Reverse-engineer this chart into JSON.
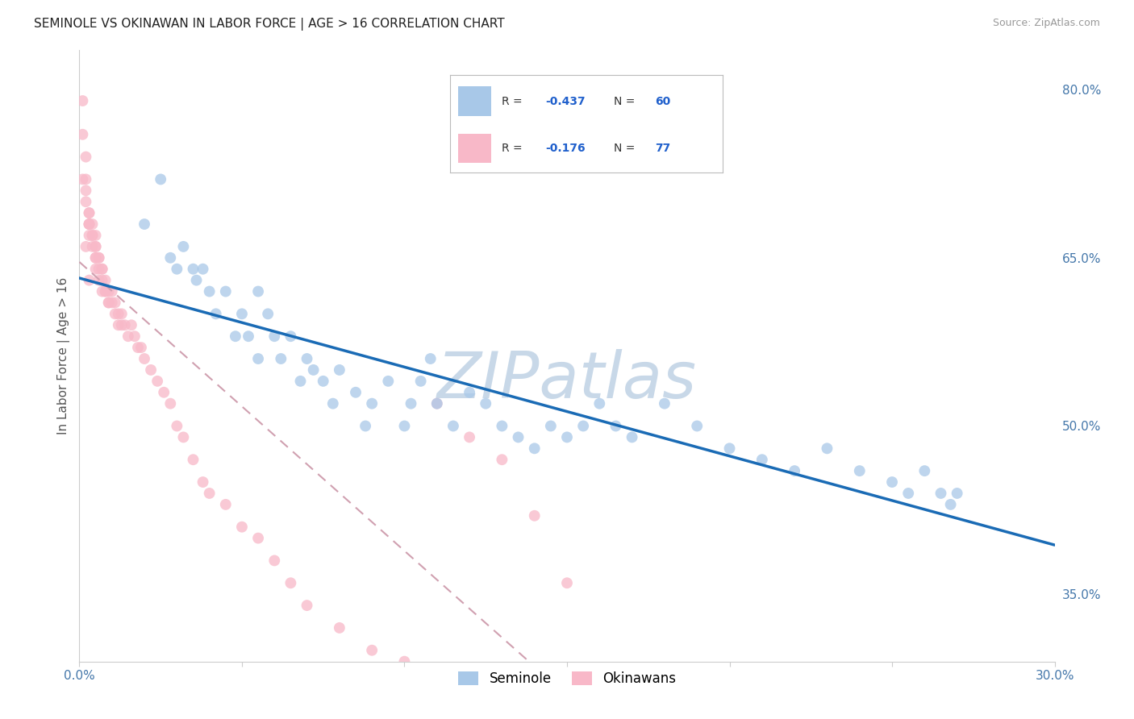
{
  "title": "SEMINOLE VS OKINAWAN IN LABOR FORCE | AGE > 16 CORRELATION CHART",
  "source": "Source: ZipAtlas.com",
  "ylabel": "In Labor Force | Age > 16",
  "xlim": [
    0.0,
    0.3
  ],
  "ylim": [
    0.29,
    0.835
  ],
  "xticks": [
    0.0,
    0.05,
    0.1,
    0.15,
    0.2,
    0.25,
    0.3
  ],
  "xtick_labels": [
    "0.0%",
    "",
    "",
    "",
    "",
    "",
    "30.0%"
  ],
  "right_yticks": [
    0.8,
    0.65,
    0.5,
    0.35
  ],
  "ytick_labels_right": [
    "80.0%",
    "65.0%",
    "50.0%",
    "35.0%"
  ],
  "seminole_color": "#a8c8e8",
  "okinawan_color": "#f8b8c8",
  "seminole_line_color": "#1a6bb5",
  "okinawan_line_color": "#e88898",
  "background_color": "#ffffff",
  "grid_color": "#dddddd",
  "watermark": "ZIPatlas",
  "watermark_color": "#c8d8e8",
  "seminole_x": [
    0.02,
    0.025,
    0.028,
    0.03,
    0.032,
    0.035,
    0.036,
    0.038,
    0.04,
    0.042,
    0.045,
    0.048,
    0.05,
    0.052,
    0.055,
    0.055,
    0.058,
    0.06,
    0.062,
    0.065,
    0.068,
    0.07,
    0.072,
    0.075,
    0.078,
    0.08,
    0.085,
    0.088,
    0.09,
    0.095,
    0.1,
    0.102,
    0.105,
    0.108,
    0.11,
    0.115,
    0.12,
    0.125,
    0.13,
    0.135,
    0.14,
    0.145,
    0.15,
    0.155,
    0.16,
    0.165,
    0.17,
    0.18,
    0.19,
    0.2,
    0.21,
    0.22,
    0.23,
    0.24,
    0.25,
    0.255,
    0.26,
    0.265,
    0.268,
    0.27
  ],
  "seminole_y": [
    0.68,
    0.72,
    0.65,
    0.64,
    0.66,
    0.64,
    0.63,
    0.64,
    0.62,
    0.6,
    0.62,
    0.58,
    0.6,
    0.58,
    0.56,
    0.62,
    0.6,
    0.58,
    0.56,
    0.58,
    0.54,
    0.56,
    0.55,
    0.54,
    0.52,
    0.55,
    0.53,
    0.5,
    0.52,
    0.54,
    0.5,
    0.52,
    0.54,
    0.56,
    0.52,
    0.5,
    0.53,
    0.52,
    0.5,
    0.49,
    0.48,
    0.5,
    0.49,
    0.5,
    0.52,
    0.5,
    0.49,
    0.52,
    0.5,
    0.48,
    0.47,
    0.46,
    0.48,
    0.46,
    0.45,
    0.44,
    0.46,
    0.44,
    0.43,
    0.44
  ],
  "okinawan_x": [
    0.001,
    0.001,
    0.001,
    0.002,
    0.002,
    0.002,
    0.002,
    0.003,
    0.003,
    0.003,
    0.003,
    0.003,
    0.003,
    0.004,
    0.004,
    0.004,
    0.004,
    0.005,
    0.005,
    0.005,
    0.005,
    0.005,
    0.005,
    0.006,
    0.006,
    0.006,
    0.006,
    0.007,
    0.007,
    0.007,
    0.007,
    0.008,
    0.008,
    0.008,
    0.009,
    0.009,
    0.009,
    0.01,
    0.01,
    0.011,
    0.011,
    0.012,
    0.012,
    0.013,
    0.013,
    0.014,
    0.015,
    0.016,
    0.017,
    0.018,
    0.019,
    0.02,
    0.022,
    0.024,
    0.026,
    0.028,
    0.03,
    0.032,
    0.035,
    0.038,
    0.04,
    0.045,
    0.05,
    0.055,
    0.06,
    0.065,
    0.07,
    0.08,
    0.09,
    0.1,
    0.11,
    0.12,
    0.13,
    0.14,
    0.15,
    0.002,
    0.003
  ],
  "okinawan_y": [
    0.79,
    0.76,
    0.72,
    0.74,
    0.72,
    0.71,
    0.7,
    0.69,
    0.69,
    0.68,
    0.68,
    0.68,
    0.67,
    0.68,
    0.67,
    0.67,
    0.66,
    0.67,
    0.66,
    0.66,
    0.65,
    0.65,
    0.64,
    0.65,
    0.65,
    0.64,
    0.63,
    0.64,
    0.64,
    0.63,
    0.62,
    0.63,
    0.62,
    0.62,
    0.62,
    0.61,
    0.61,
    0.62,
    0.61,
    0.61,
    0.6,
    0.6,
    0.59,
    0.6,
    0.59,
    0.59,
    0.58,
    0.59,
    0.58,
    0.57,
    0.57,
    0.56,
    0.55,
    0.54,
    0.53,
    0.52,
    0.5,
    0.49,
    0.47,
    0.45,
    0.44,
    0.43,
    0.41,
    0.4,
    0.38,
    0.36,
    0.34,
    0.32,
    0.3,
    0.29,
    0.52,
    0.49,
    0.47,
    0.42,
    0.36,
    0.66,
    0.63
  ]
}
